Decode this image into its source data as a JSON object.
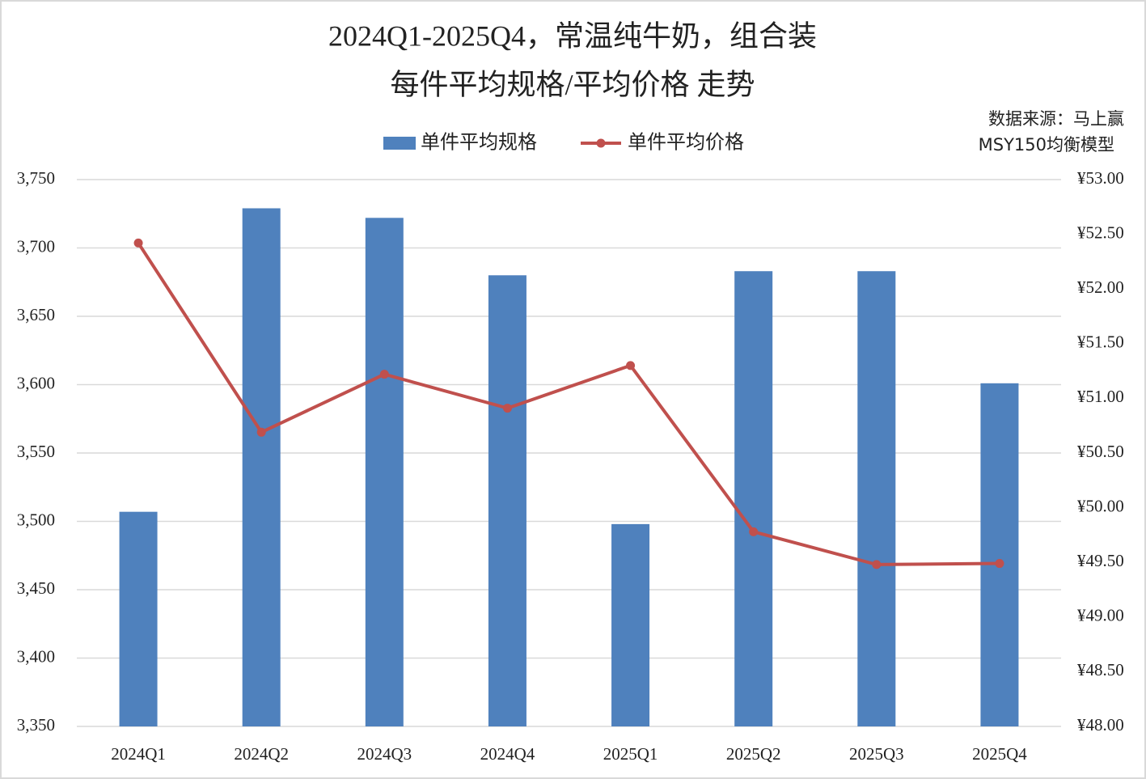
{
  "chart_data": {
    "type": "bar-line",
    "title": "2024Q1-2025Q4，常温纯牛奶，组合装",
    "subtitle": "每件平均规格/平均价格 走势",
    "annotations": [
      "数据来源：马上赢",
      "MSY150均衡模型"
    ],
    "categories": [
      "2024Q1",
      "2024Q2",
      "2024Q3",
      "2024Q4",
      "2025Q1",
      "2025Q2",
      "2025Q3",
      "2025Q4"
    ],
    "series": [
      {
        "name": "单件平均规格",
        "type": "bar",
        "color": "#4f81bd",
        "values": [
          3507,
          3729,
          3722,
          3680,
          3498,
          3683,
          3683,
          3601
        ]
      },
      {
        "name": "单件平均价格",
        "type": "line",
        "axis": "y2",
        "color": "#c0504d",
        "values": [
          52.42,
          50.69,
          51.22,
          50.91,
          51.3,
          49.78,
          49.48,
          49.49
        ]
      }
    ],
    "ylim": [
      3350,
      3750
    ],
    "yticks": [
      {
        "value": 3350,
        "label": "3,350"
      },
      {
        "value": 3400,
        "label": "3,400"
      },
      {
        "value": 3450,
        "label": "3,450"
      },
      {
        "value": 3500,
        "label": "3,500"
      },
      {
        "value": 3550,
        "label": "3,550"
      },
      {
        "value": 3600,
        "label": "3,600"
      },
      {
        "value": 3650,
        "label": "3,650"
      },
      {
        "value": 3700,
        "label": "3,700"
      },
      {
        "value": 3750,
        "label": "3,750"
      }
    ],
    "y2lim": [
      48,
      53
    ],
    "y2ticks": [
      {
        "value": 48,
        "label": "¥48.00"
      },
      {
        "value": 48.5,
        "label": "¥48.50"
      },
      {
        "value": 49,
        "label": "¥49.00"
      },
      {
        "value": 49.5,
        "label": "¥49.50"
      },
      {
        "value": 50,
        "label": "¥50.00"
      },
      {
        "value": 50.5,
        "label": "¥50.50"
      },
      {
        "value": 51,
        "label": "¥51.00"
      },
      {
        "value": 51.5,
        "label": "¥51.50"
      },
      {
        "value": 52,
        "label": "¥52.00"
      },
      {
        "value": 52.5,
        "label": "¥52.50"
      },
      {
        "value": 53,
        "label": "¥53.00"
      }
    ],
    "grid": true
  }
}
